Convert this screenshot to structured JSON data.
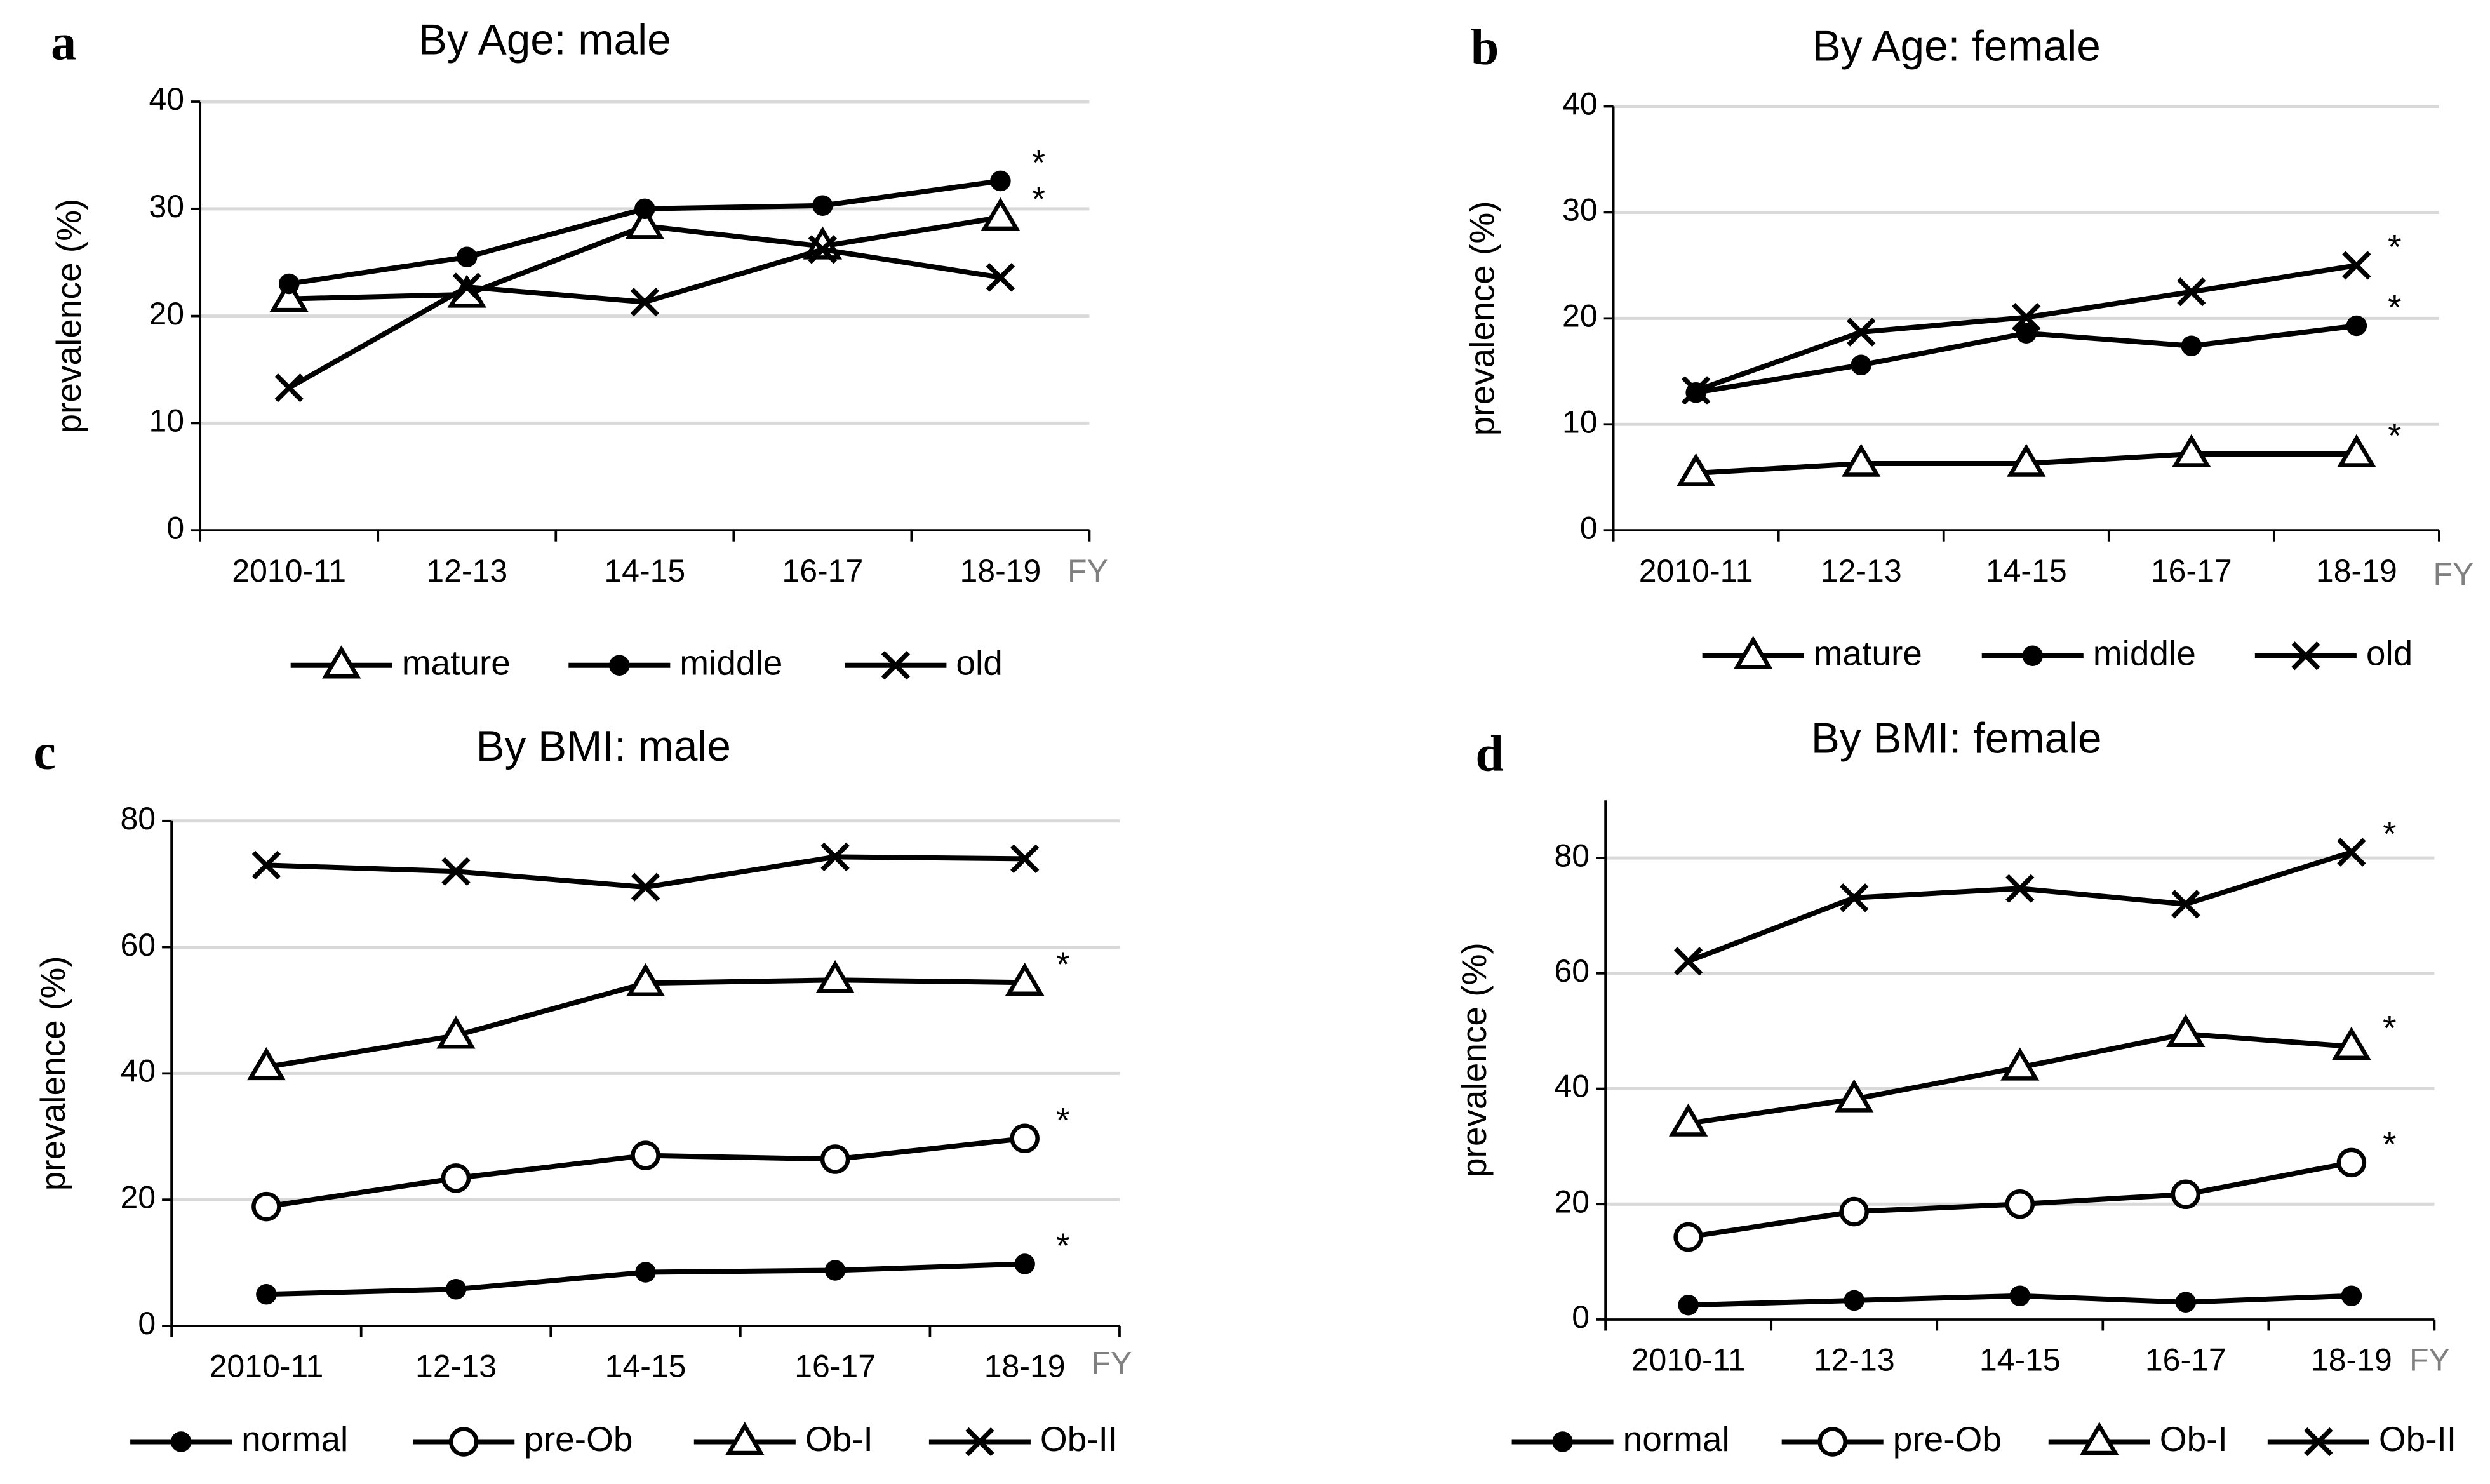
{
  "chart_data": [
    {
      "type": "line",
      "panel": "a",
      "title": "By Age: male",
      "y_label": "prevalence (%)",
      "x_unit": "FY",
      "categories": [
        "2010-11",
        "12-13",
        "14-15",
        "16-17",
        "18-19"
      ],
      "ylim": [
        0,
        40
      ],
      "yticks": [
        0,
        10,
        20,
        30,
        40
      ],
      "grid": true,
      "series": [
        {
          "name": "mature",
          "color": "#000000",
          "marker": "triangle",
          "values": [
            21.6,
            22,
            28.4,
            26.5,
            29.2
          ],
          "annotation": "*"
        },
        {
          "name": "middle",
          "color": "#000000",
          "marker": "circle",
          "values": [
            23,
            25.5,
            30,
            30.3,
            32.6
          ],
          "annotation": "*"
        },
        {
          "name": "old",
          "color": "#000000",
          "marker": "x",
          "values": [
            13.3,
            22.7,
            21.3,
            26.2,
            23.6
          ]
        }
      ]
    },
    {
      "type": "line",
      "panel": "b",
      "title": "By Age: female",
      "y_label": "prevalence (%)",
      "x_unit": "FY",
      "categories": [
        "2010-11",
        "12-13",
        "14-15",
        "16-17",
        "18-19"
      ],
      "ylim": [
        0,
        40
      ],
      "yticks": [
        0,
        10,
        20,
        30,
        40
      ],
      "grid": true,
      "series": [
        {
          "name": "mature",
          "color": "#000000",
          "marker": "triangle",
          "values": [
            5.4,
            6.3,
            6.3,
            7.2,
            7.2
          ],
          "annotation": "*"
        },
        {
          "name": "middle",
          "color": "#000000",
          "marker": "circle",
          "values": [
            13,
            15.6,
            18.6,
            17.4,
            19.3
          ],
          "annotation": "*"
        },
        {
          "name": "old",
          "color": "#000000",
          "marker": "x",
          "values": [
            13.2,
            18.7,
            20.1,
            22.5,
            25
          ],
          "annotation": "*"
        }
      ]
    },
    {
      "type": "line",
      "panel": "c",
      "title": "By BMI: male",
      "y_label": "prevalence (%)",
      "x_unit": "FY",
      "categories": [
        "2010-11",
        "12-13",
        "14-15",
        "16-17",
        "18-19"
      ],
      "ylim": [
        0,
        80
      ],
      "yticks": [
        0,
        20,
        40,
        60,
        80
      ],
      "grid": true,
      "series": [
        {
          "name": "normal",
          "color": "#000000",
          "marker": "circle",
          "values": [
            5,
            5.8,
            8.5,
            8.8,
            9.8
          ],
          "annotation": "*"
        },
        {
          "name": "pre-Ob",
          "color": "#000000",
          "marker": "circle-open",
          "values": [
            18.9,
            23.4,
            27,
            26.4,
            29.7
          ],
          "annotation": "*"
        },
        {
          "name": "Ob-I",
          "color": "#000000",
          "marker": "triangle",
          "values": [
            41,
            46,
            54.3,
            54.8,
            54.4
          ],
          "annotation": "*"
        },
        {
          "name": "Ob-II",
          "color": "#000000",
          "marker": "x",
          "values": [
            73,
            72,
            69.5,
            74.3,
            74
          ]
        }
      ]
    },
    {
      "type": "line",
      "panel": "d",
      "title": "By BMI: female",
      "y_label": "prevalence (%)",
      "x_unit": "FY",
      "categories": [
        "2010-11",
        "12-13",
        "14-15",
        "16-17",
        "18-19"
      ],
      "ylim": [
        0,
        90
      ],
      "yticks": [
        0,
        20,
        40,
        60,
        80
      ],
      "grid": true,
      "series": [
        {
          "name": "normal",
          "color": "#000000",
          "marker": "circle",
          "values": [
            2.5,
            3.3,
            4.1,
            3,
            4.1
          ]
        },
        {
          "name": "pre-Ob",
          "color": "#000000",
          "marker": "circle-open",
          "values": [
            14.3,
            18.7,
            20,
            21.7,
            27.2
          ],
          "annotation": "*"
        },
        {
          "name": "Ob-I",
          "color": "#000000",
          "marker": "triangle",
          "values": [
            34,
            38.2,
            43.7,
            49.5,
            47.3
          ],
          "annotation": "*"
        },
        {
          "name": "Ob-II",
          "color": "#000000",
          "marker": "x",
          "values": [
            62.1,
            73.1,
            74.7,
            72,
            81
          ],
          "annotation": "*"
        }
      ]
    }
  ]
}
